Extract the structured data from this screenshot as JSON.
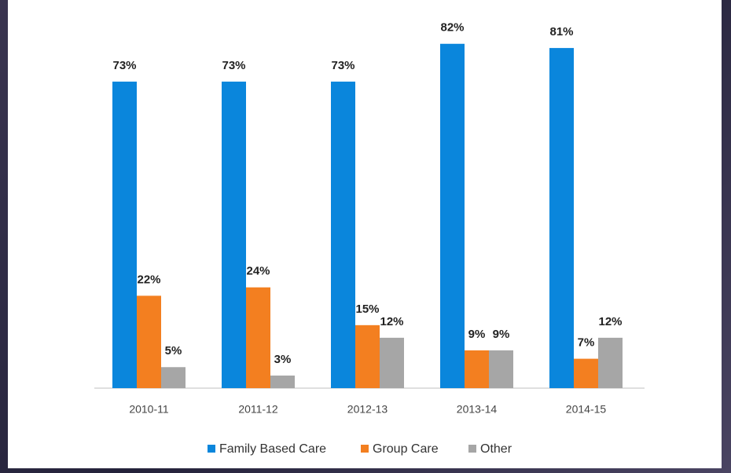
{
  "chart_data": {
    "type": "bar",
    "categories": [
      "2010-11",
      "2011-12",
      "2012-13",
      "2013-14",
      "2014-15"
    ],
    "series": [
      {
        "name": "Family Based Care",
        "color": "#0a86dc",
        "values": [
          73,
          73,
          73,
          82,
          81
        ],
        "value_labels": [
          "73%",
          "73%",
          "73%",
          "82%",
          "81%"
        ]
      },
      {
        "name": "Group Care",
        "color": "#f37f20",
        "values": [
          22,
          24,
          15,
          9,
          7
        ],
        "value_labels": [
          "22%",
          "24%",
          "15%",
          "9%",
          "7%"
        ]
      },
      {
        "name": "Other",
        "color": "#a6a6a6",
        "values": [
          5,
          3,
          12,
          9,
          12
        ],
        "value_labels": [
          "5%",
          "3%",
          "12%",
          "9%",
          "12%"
        ]
      }
    ],
    "ylim": [
      0,
      90
    ]
  }
}
